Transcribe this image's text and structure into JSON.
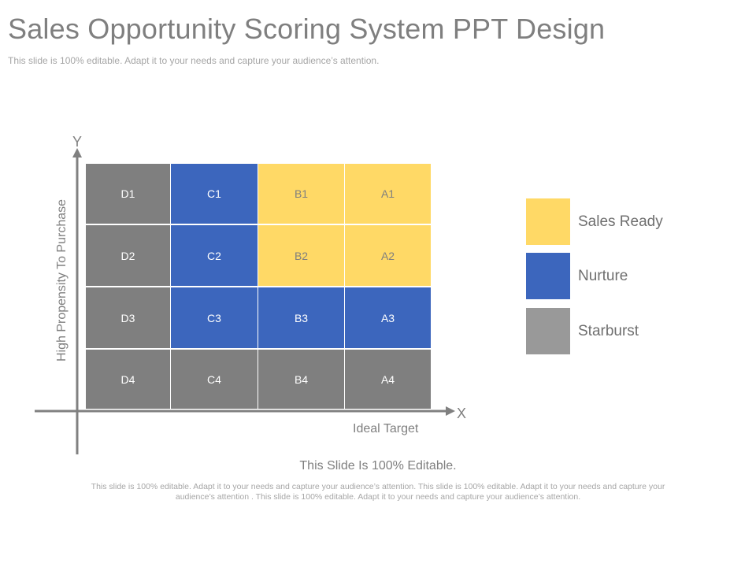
{
  "header": {
    "title": "Sales Opportunity Scoring System PPT Design",
    "subtitle": "This slide is 100% editable. Adapt it to your needs and capture your audience’s attention."
  },
  "axes": {
    "y_letter": "Y",
    "x_letter": "X",
    "y_label": "High Propensity To Purchase",
    "x_label": "Ideal Target"
  },
  "colors": {
    "sales_ready": "#ffd966",
    "nurture": "#3c66bd",
    "starburst_legend": "#999999",
    "starburst_cell": "#7f7f7f",
    "axis": "#808080"
  },
  "matrix": {
    "rows": [
      [
        {
          "label": "D1",
          "category": "starburst"
        },
        {
          "label": "C1",
          "category": "nurture"
        },
        {
          "label": "B1",
          "category": "sales_ready"
        },
        {
          "label": "A1",
          "category": "sales_ready"
        }
      ],
      [
        {
          "label": "D2",
          "category": "starburst"
        },
        {
          "label": "C2",
          "category": "nurture"
        },
        {
          "label": "B2",
          "category": "sales_ready"
        },
        {
          "label": "A2",
          "category": "sales_ready"
        }
      ],
      [
        {
          "label": "D3",
          "category": "starburst"
        },
        {
          "label": "C3",
          "category": "nurture"
        },
        {
          "label": "B3",
          "category": "nurture"
        },
        {
          "label": "A3",
          "category": "nurture"
        }
      ],
      [
        {
          "label": "D4",
          "category": "starburst"
        },
        {
          "label": "C4",
          "category": "starburst"
        },
        {
          "label": "B4",
          "category": "starburst"
        },
        {
          "label": "A4",
          "category": "starburst"
        }
      ]
    ]
  },
  "legend": {
    "items": [
      {
        "label": "Sales Ready",
        "category": "sales_ready"
      },
      {
        "label": "Nurture",
        "category": "nurture"
      },
      {
        "label": "Starburst",
        "category": "starburst"
      }
    ]
  },
  "footer": {
    "heading": "This Slide Is 100% Editable.",
    "body": "This slide is 100% editable. Adapt it to your needs and capture your audience’s attention. This slide is 100% editable. Adapt it to your needs and capture your audience’s attention . This slide is 100% editable. Adapt it to your needs and capture your audience’s attention."
  }
}
